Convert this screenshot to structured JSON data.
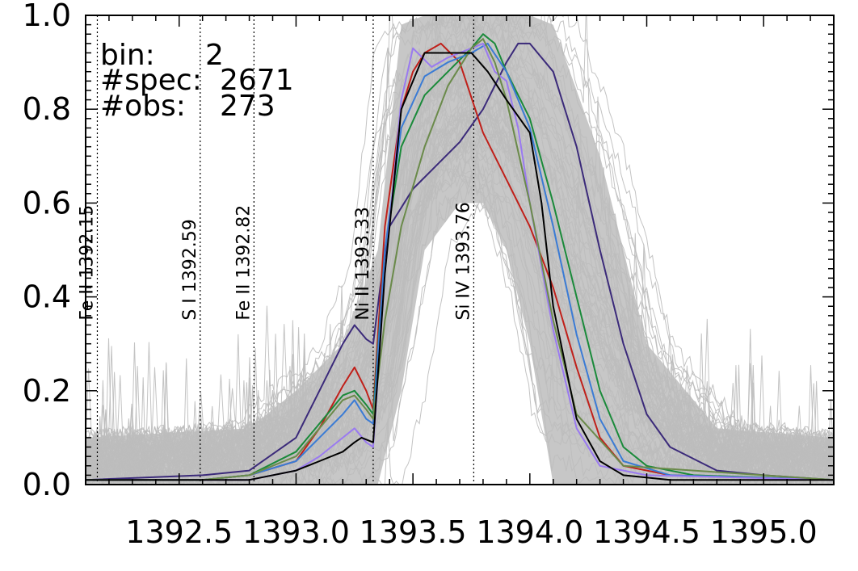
{
  "info": {
    "bin_label": "bin:",
    "bin_value": "2",
    "spec_label": "#spec:",
    "spec_value": "2671",
    "obs_label": "#obs:",
    "obs_value": "273"
  },
  "chart_data": {
    "type": "line",
    "title": "",
    "xlabel": "",
    "ylabel": "",
    "xlim": [
      1392.1,
      1395.3
    ],
    "ylim": [
      0.0,
      1.0
    ],
    "x_tick_labels": [
      "1392.5",
      "1393.0",
      "1393.5",
      "1394.0",
      "1394.5",
      "1395.0"
    ],
    "x_ticks": [
      1392.5,
      1393.0,
      1393.5,
      1394.0,
      1394.5,
      1395.0
    ],
    "y_tick_labels": [
      "0.0",
      "0.2",
      "0.4",
      "0.6",
      "0.8",
      "1.0"
    ],
    "y_ticks": [
      0.0,
      0.2,
      0.4,
      0.6,
      0.8,
      1.0
    ],
    "grid": false,
    "background_spectra": {
      "count_shown": "many",
      "color": "#bdbdbd",
      "envelope_x": [
        1392.1,
        1392.8,
        1393.0,
        1393.2,
        1393.35,
        1393.45,
        1393.55,
        1393.7,
        1393.8,
        1393.9,
        1394.0,
        1394.1,
        1394.3,
        1394.5,
        1394.8,
        1395.3
      ],
      "envelope_upper": [
        0.1,
        0.12,
        0.2,
        0.3,
        0.5,
        0.98,
        1.0,
        1.0,
        1.0,
        1.0,
        1.0,
        0.98,
        0.7,
        0.3,
        0.12,
        0.1
      ],
      "envelope_lower": [
        0.0,
        0.0,
        0.0,
        0.0,
        0.0,
        0.2,
        0.5,
        0.6,
        0.6,
        0.5,
        0.3,
        0.0,
        0.0,
        0.0,
        0.0,
        0.0
      ]
    },
    "reference_lines": [
      {
        "label": "Fe II 1392.15",
        "x": 1392.15
      },
      {
        "label": "S I 1392.59",
        "x": 1392.59
      },
      {
        "label": "Fe II 1392.82",
        "x": 1392.82
      },
      {
        "label": "Ni II 1393.33",
        "x": 1393.33
      },
      {
        "label": "Si IV 1393.76",
        "x": 1393.76
      }
    ],
    "series": [
      {
        "color": "#3b2a7a",
        "x": [
          1392.1,
          1392.6,
          1392.8,
          1393.0,
          1393.1,
          1393.2,
          1393.25,
          1393.3,
          1393.33,
          1393.36,
          1393.4,
          1393.5,
          1393.6,
          1393.7,
          1393.8,
          1393.9,
          1393.95,
          1394.0,
          1394.1,
          1394.2,
          1394.3,
          1394.4,
          1394.5,
          1394.6,
          1394.8,
          1395.0,
          1395.3
        ],
        "y": [
          0.01,
          0.02,
          0.03,
          0.1,
          0.2,
          0.3,
          0.34,
          0.31,
          0.3,
          0.42,
          0.55,
          0.63,
          0.68,
          0.73,
          0.8,
          0.9,
          0.94,
          0.94,
          0.88,
          0.72,
          0.5,
          0.3,
          0.15,
          0.08,
          0.03,
          0.02,
          0.01
        ]
      },
      {
        "color": "#c0201a",
        "x": [
          1392.1,
          1392.6,
          1392.8,
          1393.0,
          1393.1,
          1393.2,
          1393.25,
          1393.3,
          1393.33,
          1393.38,
          1393.45,
          1393.5,
          1393.55,
          1393.62,
          1393.7,
          1393.8,
          1393.9,
          1394.0,
          1394.1,
          1394.2,
          1394.3,
          1394.4,
          1394.6,
          1395.3
        ],
        "y": [
          0.01,
          0.01,
          0.02,
          0.05,
          0.12,
          0.21,
          0.25,
          0.2,
          0.16,
          0.55,
          0.8,
          0.88,
          0.92,
          0.94,
          0.9,
          0.75,
          0.65,
          0.55,
          0.42,
          0.25,
          0.1,
          0.04,
          0.02,
          0.01
        ]
      },
      {
        "color": "#1a8a3a",
        "x": [
          1392.1,
          1392.6,
          1392.8,
          1393.0,
          1393.1,
          1393.2,
          1393.25,
          1393.3,
          1393.33,
          1393.38,
          1393.45,
          1393.55,
          1393.65,
          1393.75,
          1393.8,
          1393.85,
          1393.9,
          1394.0,
          1394.1,
          1394.2,
          1394.3,
          1394.4,
          1394.5,
          1394.7,
          1395.3
        ],
        "y": [
          0.01,
          0.01,
          0.02,
          0.07,
          0.13,
          0.19,
          0.2,
          0.17,
          0.15,
          0.5,
          0.72,
          0.83,
          0.88,
          0.93,
          0.96,
          0.94,
          0.88,
          0.78,
          0.6,
          0.4,
          0.2,
          0.08,
          0.04,
          0.02,
          0.01
        ]
      },
      {
        "color": "#3a7bd5",
        "x": [
          1392.1,
          1392.6,
          1392.8,
          1393.0,
          1393.1,
          1393.2,
          1393.25,
          1393.3,
          1393.33,
          1393.38,
          1393.45,
          1393.55,
          1393.65,
          1393.75,
          1393.82,
          1393.9,
          1394.0,
          1394.1,
          1394.2,
          1394.3,
          1394.4,
          1394.6,
          1395.3
        ],
        "y": [
          0.01,
          0.01,
          0.02,
          0.05,
          0.1,
          0.15,
          0.18,
          0.14,
          0.13,
          0.5,
          0.76,
          0.87,
          0.9,
          0.92,
          0.94,
          0.88,
          0.76,
          0.55,
          0.32,
          0.14,
          0.05,
          0.02,
          0.01
        ]
      },
      {
        "color": "#9a7af0",
        "x": [
          1392.1,
          1392.6,
          1392.8,
          1393.0,
          1393.1,
          1393.2,
          1393.25,
          1393.3,
          1393.33,
          1393.38,
          1393.45,
          1393.5,
          1393.58,
          1393.65,
          1393.75,
          1393.8,
          1393.85,
          1393.9,
          1393.95,
          1394.0,
          1394.1,
          1394.2,
          1394.3,
          1394.5,
          1395.3
        ],
        "y": [
          0.01,
          0.01,
          0.01,
          0.03,
          0.06,
          0.1,
          0.12,
          0.09,
          0.08,
          0.45,
          0.82,
          0.93,
          0.89,
          0.91,
          0.93,
          0.94,
          0.88,
          0.86,
          0.76,
          0.6,
          0.33,
          0.12,
          0.04,
          0.02,
          0.01
        ]
      },
      {
        "color": "#6a8a4a",
        "x": [
          1392.1,
          1392.6,
          1392.8,
          1393.0,
          1393.1,
          1393.2,
          1393.25,
          1393.3,
          1393.33,
          1393.38,
          1393.45,
          1393.55,
          1393.65,
          1393.75,
          1393.8,
          1393.85,
          1393.9,
          1394.0,
          1394.1,
          1394.2,
          1394.4,
          1395.3
        ],
        "y": [
          0.01,
          0.01,
          0.02,
          0.06,
          0.12,
          0.18,
          0.19,
          0.16,
          0.14,
          0.35,
          0.55,
          0.72,
          0.85,
          0.93,
          0.95,
          0.9,
          0.82,
          0.6,
          0.35,
          0.15,
          0.04,
          0.01
        ]
      },
      {
        "color": "#000000",
        "x": [
          1392.1,
          1392.6,
          1392.8,
          1393.0,
          1393.1,
          1393.2,
          1393.25,
          1393.28,
          1393.33,
          1393.38,
          1393.45,
          1393.55,
          1393.65,
          1393.75,
          1393.82,
          1393.9,
          1394.0,
          1394.05,
          1394.1,
          1394.2,
          1394.3,
          1394.4,
          1394.6,
          1395.3
        ],
        "y": [
          0.01,
          0.01,
          0.01,
          0.03,
          0.05,
          0.07,
          0.09,
          0.1,
          0.09,
          0.45,
          0.8,
          0.92,
          0.92,
          0.92,
          0.88,
          0.82,
          0.75,
          0.6,
          0.38,
          0.14,
          0.05,
          0.02,
          0.01,
          0.01
        ]
      }
    ]
  }
}
